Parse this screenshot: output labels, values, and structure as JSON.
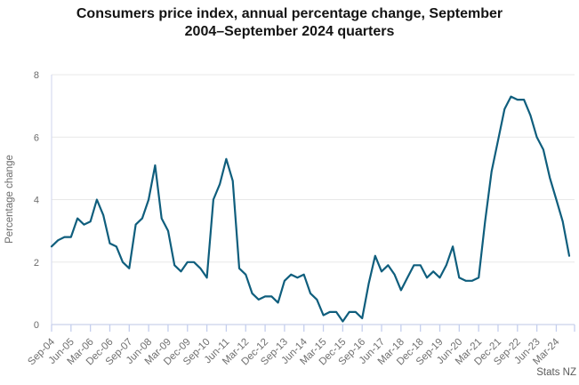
{
  "title": {
    "line1": "Consumers price index, annual percentage change, September",
    "line2": "2004–September 2024 quarters"
  },
  "colors": {
    "series_line": "#0f5e7d",
    "gridline": "#e8e8e8",
    "axis_tick": "#c5cfee",
    "plot_border": "#d7dcf0",
    "title_text": "#141414",
    "axis_text": "#6b6b6b",
    "attribution_text": "#5a5a5a",
    "background": "#ffffff"
  },
  "chart_data": {
    "type": "line",
    "title": "Consumers price index, annual percentage change, September 2004–September 2024 quarters",
    "xlabel": "",
    "ylabel": "Percentage change",
    "attribution": "Stats NZ",
    "ylim": [
      0,
      8
    ],
    "y_ticks": [
      0,
      2,
      4,
      6,
      8
    ],
    "grid": true,
    "legend_position": "none",
    "series_color": "#0f5e7d",
    "x": [
      "Sep-04",
      "Dec-04",
      "Mar-05",
      "Jun-05",
      "Sep-05",
      "Dec-05",
      "Mar-06",
      "Jun-06",
      "Sep-06",
      "Dec-06",
      "Mar-07",
      "Jun-07",
      "Sep-07",
      "Dec-07",
      "Mar-08",
      "Jun-08",
      "Sep-08",
      "Dec-08",
      "Mar-09",
      "Jun-09",
      "Sep-09",
      "Dec-09",
      "Mar-10",
      "Jun-10",
      "Sep-10",
      "Dec-10",
      "Mar-11",
      "Jun-11",
      "Sep-11",
      "Dec-11",
      "Mar-12",
      "Jun-12",
      "Sep-12",
      "Dec-12",
      "Mar-13",
      "Jun-13",
      "Sep-13",
      "Dec-13",
      "Mar-14",
      "Jun-14",
      "Sep-14",
      "Dec-14",
      "Mar-15",
      "Jun-15",
      "Sep-15",
      "Dec-15",
      "Mar-16",
      "Jun-16",
      "Sep-16",
      "Dec-16",
      "Mar-17",
      "Jun-17",
      "Sep-17",
      "Dec-17",
      "Mar-18",
      "Jun-18",
      "Sep-18",
      "Dec-18",
      "Mar-19",
      "Jun-19",
      "Sep-19",
      "Dec-19",
      "Mar-20",
      "Jun-20",
      "Sep-20",
      "Dec-20",
      "Mar-21",
      "Jun-21",
      "Sep-21",
      "Dec-21",
      "Mar-22",
      "Jun-22",
      "Sep-22",
      "Dec-22",
      "Mar-23",
      "Jun-23",
      "Sep-23",
      "Dec-23",
      "Mar-24",
      "Jun-24",
      "Sep-24"
    ],
    "values": [
      2.5,
      2.7,
      2.8,
      2.8,
      3.4,
      3.2,
      3.3,
      4.0,
      3.5,
      2.6,
      2.5,
      2.0,
      1.8,
      3.2,
      3.4,
      4.0,
      5.1,
      3.4,
      3.0,
      1.9,
      1.7,
      2.0,
      2.0,
      1.8,
      1.5,
      4.0,
      4.5,
      5.3,
      4.6,
      1.8,
      1.6,
      1.0,
      0.8,
      0.9,
      0.9,
      0.7,
      1.4,
      1.6,
      1.5,
      1.6,
      1.0,
      0.8,
      0.3,
      0.4,
      0.4,
      0.1,
      0.4,
      0.4,
      0.2,
      1.3,
      2.2,
      1.7,
      1.9,
      1.6,
      1.1,
      1.5,
      1.9,
      1.9,
      1.5,
      1.7,
      1.5,
      1.9,
      2.5,
      1.5,
      1.4,
      1.4,
      1.5,
      3.3,
      4.9,
      5.9,
      6.9,
      7.3,
      7.2,
      7.2,
      6.7,
      6.0,
      5.6,
      4.7,
      4.0,
      3.3,
      2.2
    ],
    "x_tick_labels": [
      "Sep-04",
      "Jun-05",
      "Mar-06",
      "Dec-06",
      "Sep-07",
      "Jun-08",
      "Mar-09",
      "Dec-09",
      "Sep-10",
      "Jun-11",
      "Mar-12",
      "Dec-12",
      "Sep-13",
      "Jun-14",
      "Mar-15",
      "Dec-15",
      "Sep-16",
      "Jun-17",
      "Mar-18",
      "Dec-18",
      "Sep-19",
      "Jun-20",
      "Mar-21",
      "Dec-21",
      "Sep-22",
      "Jun-23",
      "Mar-24"
    ],
    "x_tick_label_step_quarters": 3
  }
}
